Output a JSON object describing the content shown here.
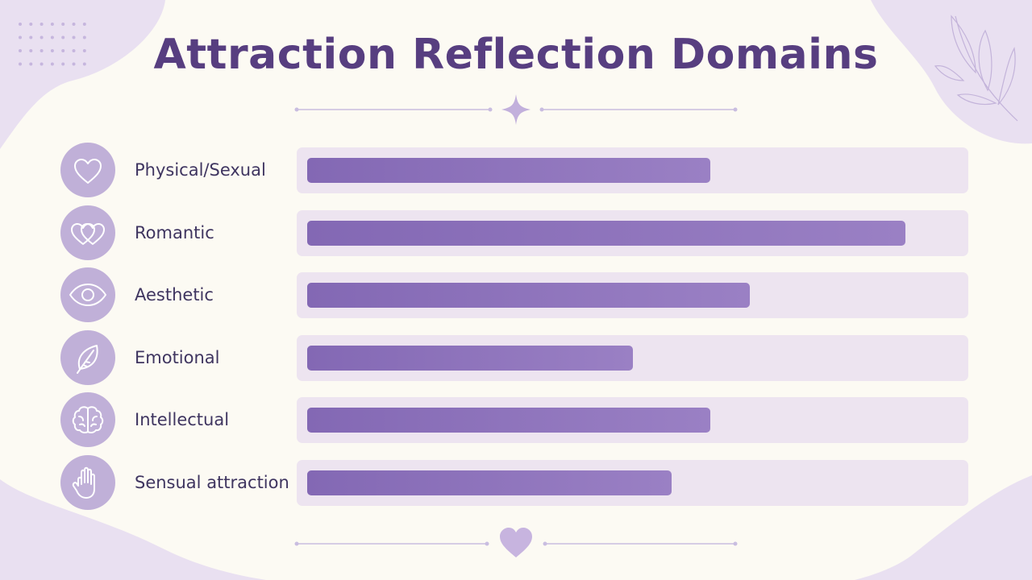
{
  "title": "Attraction Reflection Domains",
  "colors": {
    "background": "#fcfaf3",
    "title": "#573e80",
    "bar": "#8a6fb9",
    "track": "#ede4f0",
    "icon_circle": "#c0b0d8",
    "decor": "#e9e0f1"
  },
  "chart_data": {
    "type": "bar",
    "orientation": "horizontal",
    "title": "Attraction Reflection Domains",
    "xlabel": "",
    "ylabel": "",
    "xlim": [
      0,
      100
    ],
    "grid": false,
    "legend": "none",
    "categories": [
      "Physical/Sexual",
      "Romantic",
      "Aesthetic",
      "Emotional",
      "Intellectual",
      "Sensual attraction"
    ],
    "icons": [
      "heart-icon",
      "double-heart-icon",
      "eye-icon",
      "leaf-icon",
      "brain-icon",
      "hand-icon"
    ],
    "values": [
      62,
      92,
      68,
      50,
      62,
      56
    ]
  }
}
